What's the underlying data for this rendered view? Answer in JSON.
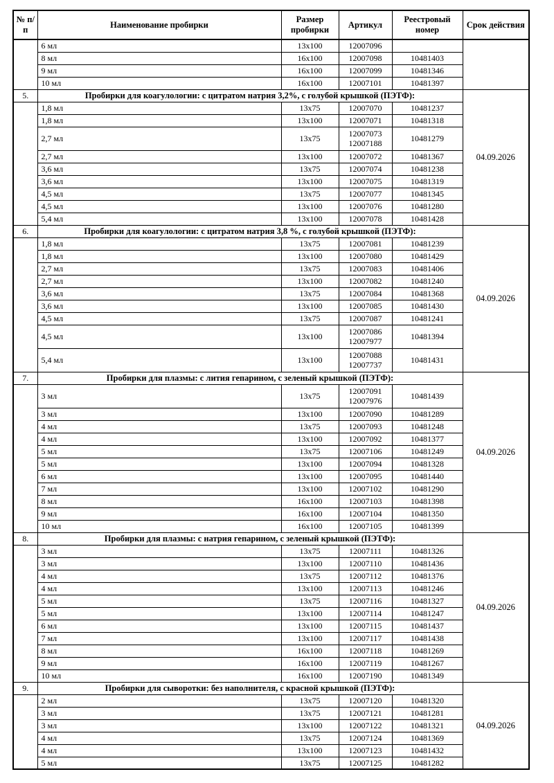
{
  "table": {
    "columns": [
      "№ п/п",
      "Наименование пробирки",
      "Размер пробирки",
      "Артикул",
      "Реестровый номер",
      "Срок действия"
    ],
    "sections": [
      {
        "number": "",
        "title": "",
        "term": "",
        "rows": [
          {
            "name": "6 мл",
            "size": "13x100",
            "articles": [
              "12007096"
            ],
            "reg": ""
          },
          {
            "name": "8 мл",
            "size": "16x100",
            "articles": [
              "12007098"
            ],
            "reg": "10481403"
          },
          {
            "name": "9 мл",
            "size": "16x100",
            "articles": [
              "12007099"
            ],
            "reg": "10481346"
          },
          {
            "name": "10 мл",
            "size": "16x100",
            "articles": [
              "12007101"
            ],
            "reg": "10481397"
          }
        ]
      },
      {
        "number": "5.",
        "title": "Пробирки для коагулологии: с цитратом натрия 3,2%, с голубой крышкой (ПЭТФ):",
        "term": "04.09.2026",
        "rows": [
          {
            "name": "1,8 мл",
            "size": "13x75",
            "articles": [
              "12007070"
            ],
            "reg": "10481237"
          },
          {
            "name": "1,8 мл",
            "size": "13x100",
            "articles": [
              "12007071"
            ],
            "reg": "10481318"
          },
          {
            "name": "2,7 мл",
            "size": "13x75",
            "articles": [
              "12007073",
              "12007188"
            ],
            "reg": "10481279"
          },
          {
            "name": "2,7 мл",
            "size": "13x100",
            "articles": [
              "12007072"
            ],
            "reg": "10481367"
          },
          {
            "name": "3,6 мл",
            "size": "13x75",
            "articles": [
              "12007074"
            ],
            "reg": "10481238"
          },
          {
            "name": "3,6 мл",
            "size": "13x100",
            "articles": [
              "12007075"
            ],
            "reg": "10481319"
          },
          {
            "name": "4,5 мл",
            "size": "13x75",
            "articles": [
              "12007077"
            ],
            "reg": "10481345"
          },
          {
            "name": "4,5 мл",
            "size": "13x100",
            "articles": [
              "12007076"
            ],
            "reg": "10481280"
          },
          {
            "name": "5,4 мл",
            "size": "13x100",
            "articles": [
              "12007078"
            ],
            "reg": "10481428"
          }
        ]
      },
      {
        "number": "6.",
        "title": "Пробирки для коагулологии: с цитратом натрия 3,8 %, с голубой крышкой (ПЭТФ):",
        "term": "04.09.2026",
        "rows": [
          {
            "name": "1,8 мл",
            "size": "13x75",
            "articles": [
              "12007081"
            ],
            "reg": "10481239"
          },
          {
            "name": "1,8 мл",
            "size": "13x100",
            "articles": [
              "12007080"
            ],
            "reg": "10481429"
          },
          {
            "name": "2,7 мл",
            "size": "13x75",
            "articles": [
              "12007083"
            ],
            "reg": "10481406"
          },
          {
            "name": "2,7 мл",
            "size": "13x100",
            "articles": [
              "12007082"
            ],
            "reg": "10481240"
          },
          {
            "name": "3,6 мл",
            "size": "13x75",
            "articles": [
              "12007084"
            ],
            "reg": "10481368"
          },
          {
            "name": "3,6 мл",
            "size": "13x100",
            "articles": [
              "12007085"
            ],
            "reg": "10481430"
          },
          {
            "name": "4,5 мл",
            "size": "13x75",
            "articles": [
              "12007087"
            ],
            "reg": "10481241"
          },
          {
            "name": "4,5 мл",
            "size": "13x100",
            "articles": [
              "12007086",
              "12007977"
            ],
            "reg": "10481394"
          },
          {
            "name": "5,4 мл",
            "size": "13x100",
            "articles": [
              "12007088",
              "12007737"
            ],
            "reg": "10481431"
          }
        ]
      },
      {
        "number": "7.",
        "title": "Пробирки для плазмы: с лития гепарином, с зеленый крышкой (ПЭТФ):",
        "term": "04.09.2026",
        "rows": [
          {
            "name": "3 мл",
            "size": "13x75",
            "articles": [
              "12007091",
              "12007976"
            ],
            "reg": "10481439"
          },
          {
            "name": "3 мл",
            "size": "13x100",
            "articles": [
              "12007090"
            ],
            "reg": "10481289"
          },
          {
            "name": "4 мл",
            "size": "13x75",
            "articles": [
              "12007093"
            ],
            "reg": "10481248"
          },
          {
            "name": "4 мл",
            "size": "13x100",
            "articles": [
              "12007092"
            ],
            "reg": "10481377"
          },
          {
            "name": "5 мл",
            "size": "13x75",
            "articles": [
              "12007106"
            ],
            "reg": "10481249"
          },
          {
            "name": "5 мл",
            "size": "13x100",
            "articles": [
              "12007094"
            ],
            "reg": "10481328"
          },
          {
            "name": "6 мл",
            "size": "13x100",
            "articles": [
              "12007095"
            ],
            "reg": "10481440"
          },
          {
            "name": "7 мл",
            "size": "13x100",
            "articles": [
              "12007102"
            ],
            "reg": "10481290"
          },
          {
            "name": "8 мл",
            "size": "16x100",
            "articles": [
              "12007103"
            ],
            "reg": "10481398"
          },
          {
            "name": "9 мл",
            "size": "16x100",
            "articles": [
              "12007104"
            ],
            "reg": "10481350"
          },
          {
            "name": "10 мл",
            "size": "16x100",
            "articles": [
              "12007105"
            ],
            "reg": "10481399"
          }
        ]
      },
      {
        "number": "8.",
        "title": "Пробирки для плазмы: с натрия гепарином, с зеленый крышкой (ПЭТФ):",
        "term": "04.09.2026",
        "rows": [
          {
            "name": "3 мл",
            "size": "13x75",
            "articles": [
              "12007111"
            ],
            "reg": "10481326"
          },
          {
            "name": "3 мл",
            "size": "13x100",
            "articles": [
              "12007110"
            ],
            "reg": "10481436"
          },
          {
            "name": "4 мл",
            "size": "13x75",
            "articles": [
              "12007112"
            ],
            "reg": "10481376"
          },
          {
            "name": "4 мл",
            "size": "13x100",
            "articles": [
              "12007113"
            ],
            "reg": "10481246"
          },
          {
            "name": "5 мл",
            "size": "13x75",
            "articles": [
              "12007116"
            ],
            "reg": "10481327"
          },
          {
            "name": "5 мл",
            "size": "13x100",
            "articles": [
              "12007114"
            ],
            "reg": "10481247"
          },
          {
            "name": "6 мл",
            "size": "13x100",
            "articles": [
              "12007115"
            ],
            "reg": "10481437"
          },
          {
            "name": "7 мл",
            "size": "13x100",
            "articles": [
              "12007117"
            ],
            "reg": "10481438"
          },
          {
            "name": "8 мл",
            "size": "16x100",
            "articles": [
              "12007118"
            ],
            "reg": "10481269"
          },
          {
            "name": "9 мл",
            "size": "16x100",
            "articles": [
              "12007119"
            ],
            "reg": "10481267"
          },
          {
            "name": "10 мл",
            "size": "16x100",
            "articles": [
              "12007190"
            ],
            "reg": "10481349"
          }
        ]
      },
      {
        "number": "9.",
        "title": "Пробирки для сыворотки: без наполнителя, с красной крышкой (ПЭТФ):",
        "term": "04.09.2026",
        "rows": [
          {
            "name": "2 мл",
            "size": "13x75",
            "articles": [
              "12007120"
            ],
            "reg": "10481320"
          },
          {
            "name": "3 мл",
            "size": "13x75",
            "articles": [
              "12007121"
            ],
            "reg": "10481281"
          },
          {
            "name": "3 мл",
            "size": "13x100",
            "articles": [
              "12007122"
            ],
            "reg": "10481321"
          },
          {
            "name": "4 мл",
            "size": "13x75",
            "articles": [
              "12007124"
            ],
            "reg": "10481369"
          },
          {
            "name": "4 мл",
            "size": "13x100",
            "articles": [
              "12007123"
            ],
            "reg": "10481432"
          },
          {
            "name": "5 мл",
            "size": "13x75",
            "articles": [
              "12007125"
            ],
            "reg": "10481282"
          }
        ]
      }
    ]
  }
}
